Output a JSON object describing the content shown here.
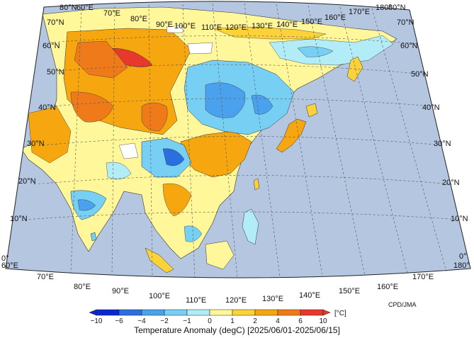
{
  "map": {
    "credit": "CPD/JMA",
    "title": "Temperature Anomaly (degC) [2025/06/01-2025/06/15]",
    "unit": "[°C]",
    "colors": {
      "ocean": "#b4c6e0",
      "frame": "#222222",
      "grid": "#555555",
      "nodata": "#ffffff"
    },
    "top_lon_labels": [
      "60°E",
      "70°E",
      "80°E",
      "90°E",
      "100°E",
      "110°E",
      "120°E",
      "130°E",
      "140°E",
      "150°E",
      "160°E",
      "170°E",
      "180°"
    ],
    "bottom_lon_labels": [
      "60°E",
      "70°E",
      "80°E",
      "90°E",
      "100°E",
      "110°E",
      "120°E",
      "130°E",
      "140°E",
      "150°E",
      "160°E",
      "170°E",
      "180°"
    ],
    "left_lat_labels": [
      "80°N",
      "70°N",
      "60°N",
      "50°N",
      "40°N",
      "30°N",
      "20°N",
      "10°N",
      "0°"
    ],
    "right_lat_labels": [
      "80°N",
      "70°N",
      "60°N",
      "50°N",
      "40°N",
      "30°N",
      "20°N",
      "10°N",
      "0°"
    ]
  },
  "colorbar": {
    "ticks": [
      "−10",
      "−6",
      "−4",
      "−2",
      "−1",
      "0",
      "1",
      "2",
      "4",
      "6",
      "10"
    ],
    "colors": [
      "#0a28d0",
      "#2a6ee0",
      "#4aa2ee",
      "#78cff4",
      "#b2ecf6",
      "#fff79a",
      "#fbd23a",
      "#f6a60e",
      "#ef7a1a",
      "#e8372c"
    ]
  }
}
